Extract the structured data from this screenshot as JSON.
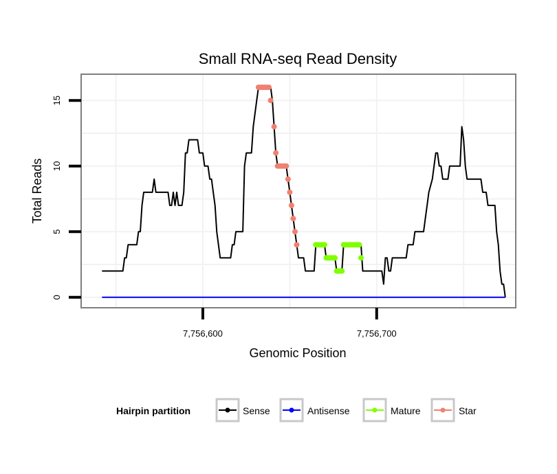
{
  "chart_data": {
    "type": "line",
    "title": "Small RNA-seq Read Density",
    "xlabel": "Genomic Position",
    "ylabel": "Total Reads",
    "xlim": [
      7756530,
      7756780
    ],
    "ylim": [
      -0.8,
      17
    ],
    "x_ticks": [
      {
        "value": 7756600,
        "label": "7,756,600"
      },
      {
        "value": 7756700,
        "label": "7,756,700"
      }
    ],
    "y_ticks": [
      {
        "value": 0,
        "label": "0"
      },
      {
        "value": 5,
        "label": "5"
      },
      {
        "value": 10,
        "label": "10"
      },
      {
        "value": 15,
        "label": "15"
      }
    ],
    "legend": {
      "title": "Hairpin partition",
      "position": "bottom",
      "entries": [
        {
          "name": "Sense",
          "color": "#000000"
        },
        {
          "name": "Antisense",
          "color": "#0000ff"
        },
        {
          "name": "Mature",
          "color": "#7fff00"
        },
        {
          "name": "Star",
          "color": "#f08070"
        }
      ]
    },
    "series": [
      {
        "name": "Sense",
        "color": "#000000",
        "kind": "line",
        "points": [
          [
            7756542,
            2
          ],
          [
            7756554,
            2
          ],
          [
            7756555,
            3
          ],
          [
            7756556,
            3
          ],
          [
            7756557,
            4
          ],
          [
            7756562,
            4
          ],
          [
            7756563,
            5
          ],
          [
            7756564,
            5
          ],
          [
            7756565,
            7
          ],
          [
            7756566,
            8
          ],
          [
            7756571,
            8
          ],
          [
            7756572,
            9
          ],
          [
            7756573,
            8
          ],
          [
            7756580,
            8
          ],
          [
            7756581,
            7
          ],
          [
            7756582,
            7
          ],
          [
            7756583,
            8
          ],
          [
            7756584,
            7
          ],
          [
            7756585,
            8
          ],
          [
            7756586,
            7
          ],
          [
            7756588,
            7
          ],
          [
            7756589,
            8
          ],
          [
            7756590,
            11
          ],
          [
            7756591,
            11
          ],
          [
            7756592,
            12
          ],
          [
            7756597,
            12
          ],
          [
            7756598,
            11
          ],
          [
            7756600,
            11
          ],
          [
            7756601,
            10
          ],
          [
            7756603,
            10
          ],
          [
            7756604,
            9
          ],
          [
            7756605,
            9
          ],
          [
            7756606,
            8
          ],
          [
            7756607,
            7
          ],
          [
            7756608,
            5
          ],
          [
            7756609,
            4
          ],
          [
            7756610,
            3
          ],
          [
            7756616,
            3
          ],
          [
            7756617,
            4
          ],
          [
            7756618,
            4
          ],
          [
            7756619,
            5
          ],
          [
            7756623,
            5
          ],
          [
            7756624,
            10
          ],
          [
            7756625,
            11
          ],
          [
            7756628,
            11
          ],
          [
            7756629,
            13
          ],
          [
            7756630,
            14
          ],
          [
            7756631,
            15
          ],
          [
            7756632,
            16
          ],
          [
            7756639,
            16
          ],
          [
            7756640,
            15
          ],
          [
            7756641,
            13
          ],
          [
            7756642,
            11
          ],
          [
            7756643,
            10
          ],
          [
            7756648,
            10
          ],
          [
            7756649,
            9
          ],
          [
            7756650,
            8
          ],
          [
            7756651,
            7
          ],
          [
            7756652,
            6
          ],
          [
            7756653,
            5
          ],
          [
            7756654,
            4
          ],
          [
            7756655,
            3
          ],
          [
            7756658,
            3
          ],
          [
            7756659,
            2
          ],
          [
            7756664,
            2
          ],
          [
            7756665,
            4
          ],
          [
            7756670,
            4
          ],
          [
            7756671,
            3
          ],
          [
            7756676,
            3
          ],
          [
            7756677,
            2
          ],
          [
            7756680,
            2
          ],
          [
            7756681,
            4
          ],
          [
            7756691,
            4
          ],
          [
            7756692,
            2
          ],
          [
            7756703,
            2
          ],
          [
            7756704,
            1
          ],
          [
            7756705,
            3
          ],
          [
            7756706,
            3
          ],
          [
            7756707,
            2
          ],
          [
            7756708,
            2
          ],
          [
            7756709,
            3
          ],
          [
            7756717,
            3
          ],
          [
            7756718,
            4
          ],
          [
            7756721,
            4
          ],
          [
            7756722,
            5
          ],
          [
            7756727,
            5
          ],
          [
            7756728,
            6
          ],
          [
            7756729,
            7
          ],
          [
            7756730,
            8
          ],
          [
            7756732,
            9
          ],
          [
            7756733,
            10
          ],
          [
            7756734,
            11
          ],
          [
            7756735,
            11
          ],
          [
            7756736,
            10
          ],
          [
            7756737,
            10
          ],
          [
            7756738,
            9
          ],
          [
            7756741,
            9
          ],
          [
            7756742,
            10
          ],
          [
            7756748,
            10
          ],
          [
            7756749,
            13
          ],
          [
            7756750,
            12
          ],
          [
            7756751,
            10
          ],
          [
            7756752,
            9
          ],
          [
            7756760,
            9
          ],
          [
            7756761,
            8
          ],
          [
            7756763,
            8
          ],
          [
            7756764,
            7
          ],
          [
            7756768,
            7
          ],
          [
            7756769,
            5
          ],
          [
            7756770,
            4
          ],
          [
            7756771,
            2
          ],
          [
            7756772,
            1
          ],
          [
            7756773,
            1
          ],
          [
            7756774,
            0
          ]
        ]
      },
      {
        "name": "Antisense",
        "color": "#0000ff",
        "kind": "line",
        "points": [
          [
            7756542,
            0
          ],
          [
            7756774,
            0
          ]
        ]
      },
      {
        "name": "Star",
        "color": "#f08070",
        "kind": "points",
        "points": [
          [
            7756632,
            16
          ],
          [
            7756633,
            16
          ],
          [
            7756634,
            16
          ],
          [
            7756635,
            16
          ],
          [
            7756636,
            16
          ],
          [
            7756637,
            16
          ],
          [
            7756638,
            16
          ],
          [
            7756639,
            15
          ],
          [
            7756641,
            13
          ],
          [
            7756642,
            11
          ],
          [
            7756643,
            10
          ],
          [
            7756644,
            10
          ],
          [
            7756645,
            10
          ],
          [
            7756646,
            10
          ],
          [
            7756647,
            10
          ],
          [
            7756648,
            10
          ],
          [
            7756649,
            9
          ],
          [
            7756650,
            8
          ],
          [
            7756651,
            7
          ],
          [
            7756652,
            6
          ],
          [
            7756653,
            5
          ],
          [
            7756654,
            4
          ]
        ]
      },
      {
        "name": "Mature",
        "color": "#7fff00",
        "kind": "points",
        "points": [
          [
            7756665,
            4
          ],
          [
            7756666,
            4
          ],
          [
            7756667,
            4
          ],
          [
            7756668,
            4
          ],
          [
            7756669,
            4
          ],
          [
            7756670,
            4
          ],
          [
            7756671,
            3
          ],
          [
            7756672,
            3
          ],
          [
            7756673,
            3
          ],
          [
            7756674,
            3
          ],
          [
            7756675,
            3
          ],
          [
            7756676,
            3
          ],
          [
            7756677,
            2
          ],
          [
            7756678,
            2
          ],
          [
            7756679,
            2
          ],
          [
            7756680,
            2
          ],
          [
            7756681,
            4
          ],
          [
            7756682,
            4
          ],
          [
            7756683,
            4
          ],
          [
            7756684,
            4
          ],
          [
            7756685,
            4
          ],
          [
            7756686,
            4
          ],
          [
            7756687,
            4
          ],
          [
            7756688,
            4
          ],
          [
            7756689,
            4
          ],
          [
            7756690,
            4
          ],
          [
            7756691,
            3
          ]
        ]
      }
    ]
  }
}
